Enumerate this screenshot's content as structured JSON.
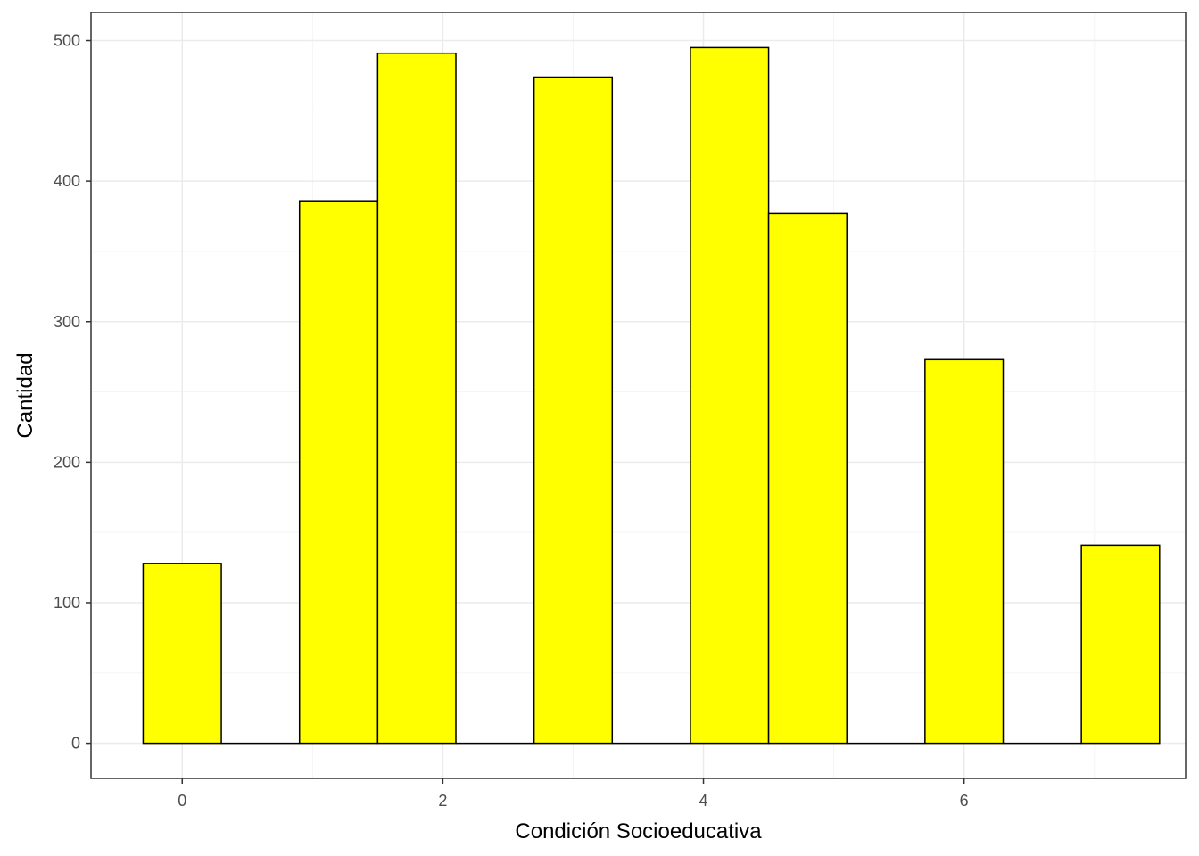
{
  "chart_data": {
    "type": "bar",
    "subtype": "histogram",
    "xlabel": "Condición Socioeducativa",
    "ylabel": "Cantidad",
    "xlim": [
      -0.7,
      7.7
    ],
    "ylim": [
      -25,
      520
    ],
    "x_ticks": [
      0,
      2,
      4,
      6
    ],
    "x_tick_labels": [
      "0",
      "2",
      "4",
      "6"
    ],
    "y_ticks": [
      0,
      100,
      200,
      300,
      400,
      500
    ],
    "y_tick_labels": [
      "0",
      "100",
      "200",
      "300",
      "400",
      "500"
    ],
    "grid": true,
    "legend": "none",
    "bin_width": 0.6,
    "bins": [
      {
        "x0": -0.3,
        "x1": 0.3,
        "count": 128
      },
      {
        "x0": 0.3,
        "x1": 0.9,
        "count": 0
      },
      {
        "x0": 0.9,
        "x1": 1.5,
        "count": 386
      },
      {
        "x0": 1.5,
        "x1": 2.1,
        "count": 491
      },
      {
        "x0": 2.1,
        "x1": 2.7,
        "count": 0
      },
      {
        "x0": 2.7,
        "x1": 3.3,
        "count": 474
      },
      {
        "x0": 3.3,
        "x1": 3.9,
        "count": 0
      },
      {
        "x0": 3.9,
        "x1": 4.5,
        "count": 495
      },
      {
        "x0": 4.5,
        "x1": 5.1,
        "count": 377
      },
      {
        "x0": 5.1,
        "x1": 5.7,
        "count": 0
      },
      {
        "x0": 5.7,
        "x1": 6.3,
        "count": 273
      },
      {
        "x0": 6.3,
        "x1": 6.9,
        "count": 0
      },
      {
        "x0": 6.9,
        "x1": 7.5,
        "count": 141
      }
    ],
    "colors": {
      "bar_fill": "#ffff00",
      "bar_stroke": "#000000",
      "grid_major": "#ebebeb",
      "grid_minor": "#f5f5f5",
      "panel_border": "#333333"
    }
  }
}
